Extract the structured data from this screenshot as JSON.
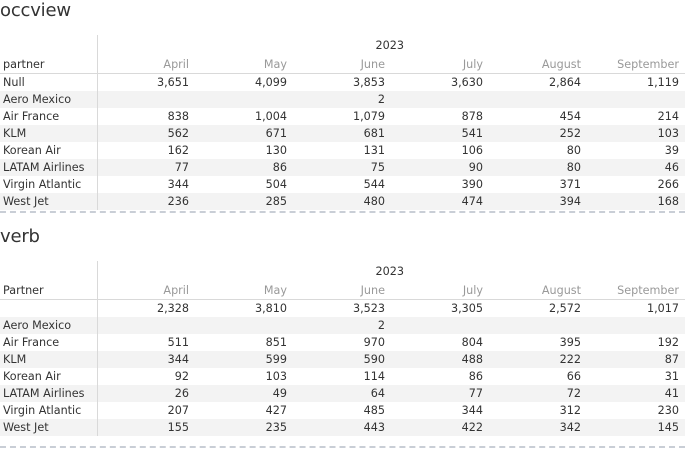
{
  "months": [
    "April",
    "May",
    "June",
    "July",
    "August",
    "September"
  ],
  "sections": [
    {
      "title": "occview",
      "year": "2023",
      "partner_header": "partner",
      "rows": [
        {
          "name": "Null",
          "values": [
            "3,651",
            "4,099",
            "3,853",
            "3,630",
            "2,864",
            "1,119"
          ]
        },
        {
          "name": "Aero Mexico",
          "values": [
            "",
            "",
            "2",
            "",
            "",
            ""
          ]
        },
        {
          "name": "Air France",
          "values": [
            "838",
            "1,004",
            "1,079",
            "878",
            "454",
            "214"
          ]
        },
        {
          "name": "KLM",
          "values": [
            "562",
            "671",
            "681",
            "541",
            "252",
            "103"
          ]
        },
        {
          "name": "Korean Air",
          "values": [
            "162",
            "130",
            "131",
            "106",
            "80",
            "39"
          ]
        },
        {
          "name": "LATAM Airlines",
          "values": [
            "77",
            "86",
            "75",
            "90",
            "80",
            "46"
          ]
        },
        {
          "name": "Virgin Atlantic",
          "values": [
            "344",
            "504",
            "544",
            "390",
            "371",
            "266"
          ]
        },
        {
          "name": "West Jet",
          "values": [
            "236",
            "285",
            "480",
            "474",
            "394",
            "168"
          ]
        }
      ]
    },
    {
      "title": "verb",
      "year": "2023",
      "partner_header": "Partner",
      "rows": [
        {
          "name": "",
          "values": [
            "2,328",
            "3,810",
            "3,523",
            "3,305",
            "2,572",
            "1,017"
          ]
        },
        {
          "name": "Aero Mexico",
          "values": [
            "",
            "",
            "2",
            "",
            "",
            ""
          ]
        },
        {
          "name": "Air France",
          "values": [
            "511",
            "851",
            "970",
            "804",
            "395",
            "192"
          ]
        },
        {
          "name": "KLM",
          "values": [
            "344",
            "599",
            "590",
            "488",
            "222",
            "87"
          ]
        },
        {
          "name": "Korean Air",
          "values": [
            "92",
            "103",
            "114",
            "86",
            "66",
            "31"
          ]
        },
        {
          "name": "LATAM Airlines",
          "values": [
            "26",
            "49",
            "64",
            "77",
            "72",
            "41"
          ]
        },
        {
          "name": "Virgin Atlantic",
          "values": [
            "207",
            "427",
            "485",
            "344",
            "312",
            "230"
          ]
        },
        {
          "name": "West Jet",
          "values": [
            "155",
            "235",
            "443",
            "422",
            "342",
            "145"
          ]
        }
      ]
    }
  ]
}
